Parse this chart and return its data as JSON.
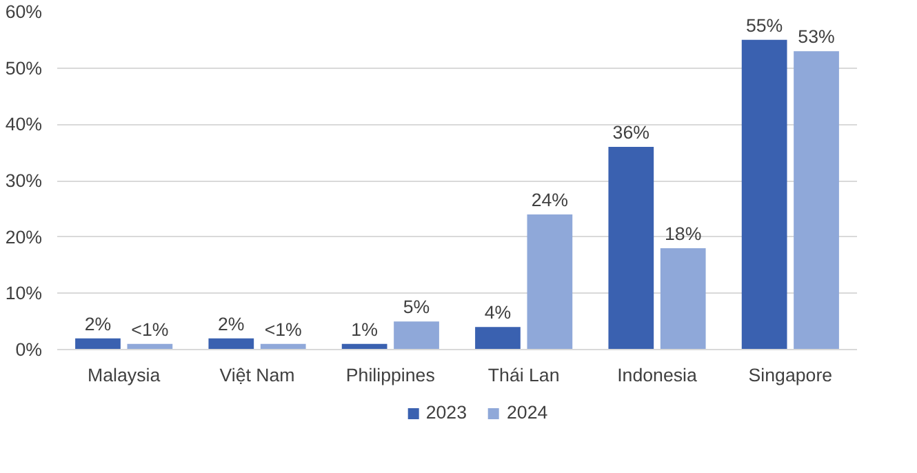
{
  "chart_data": {
    "type": "bar",
    "categories": [
      "Malaysia",
      "Việt Nam",
      "Philippines",
      "Thái Lan",
      "Indonesia",
      "Singapore"
    ],
    "series": [
      {
        "name": "2023",
        "color": "#3a61b0",
        "values": [
          2,
          2,
          1,
          4,
          36,
          55
        ],
        "value_labels": [
          "2%",
          "2%",
          "1%",
          "4%",
          "36%",
          "55%"
        ]
      },
      {
        "name": "2024",
        "color": "#8fa8d9",
        "values": [
          1,
          1,
          5,
          24,
          18,
          53
        ],
        "value_labels": [
          "<1%",
          "<1%",
          "5%",
          "24%",
          "18%",
          "53%"
        ]
      }
    ],
    "ylim": [
      0,
      60
    ],
    "yticks": [
      {
        "value": 0,
        "label": "0%"
      },
      {
        "value": 10,
        "label": "10%"
      },
      {
        "value": 20,
        "label": "20%"
      },
      {
        "value": 30,
        "label": "30%"
      },
      {
        "value": 40,
        "label": "40%"
      },
      {
        "value": 50,
        "label": "50%"
      },
      {
        "value": 60,
        "label": "60%"
      }
    ],
    "grid": "y",
    "legend": "bottom"
  }
}
